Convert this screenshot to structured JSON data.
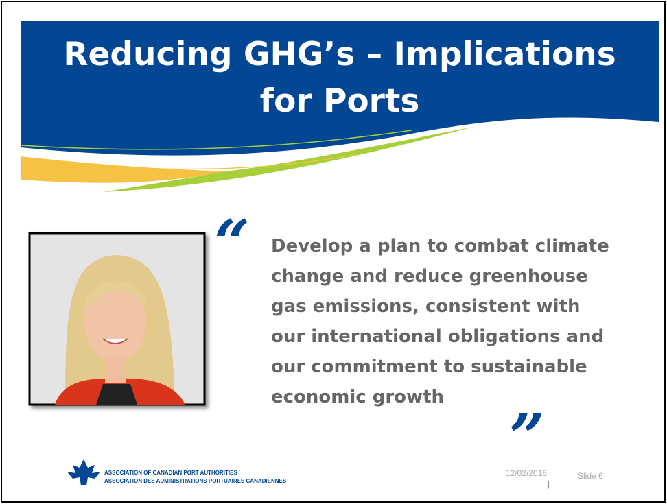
{
  "header": {
    "title_lines": [
      "Reducing GHG’s – Implications",
      "for Ports"
    ]
  },
  "quote": {
    "open_mark": "“",
    "lines": [
      "Develop a plan to combat climate",
      "change and reduce greenhouse",
      "gas emissions, consistent with",
      "our international obligations and",
      "our commitment to sustainable",
      "economic growth"
    ],
    "close_mark": "”"
  },
  "footer": {
    "org_en": "ASSOCIATION OF CANADIAN PORT AUTHORITIES",
    "org_fr": "ASSOCIATION DES ADMINISTRATIONS PORTUAIRES CANADIENNES",
    "date": "12/02/2016",
    "separator": "|",
    "slide": "Slide 6"
  }
}
